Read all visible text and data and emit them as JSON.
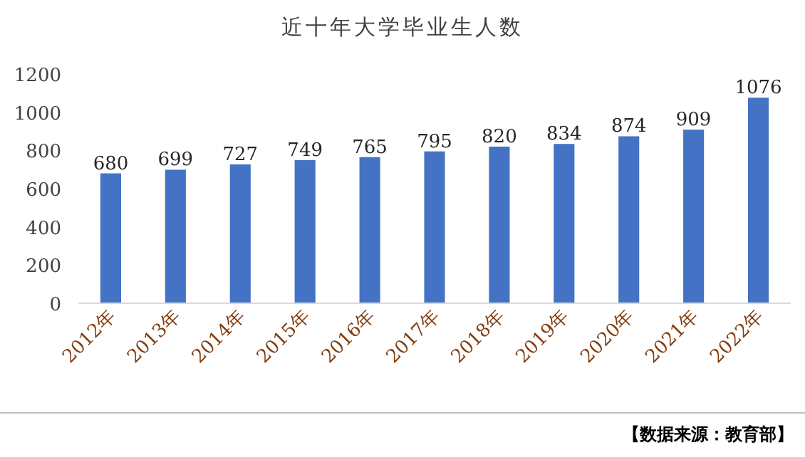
{
  "chart_data": {
    "type": "bar",
    "title": "近十年大学毕业生人数",
    "categories": [
      "2012年",
      "2013年",
      "2014年",
      "2015年",
      "2016年",
      "2017年",
      "2018年",
      "2019年",
      "2020年",
      "2021年",
      "2022年"
    ],
    "values": [
      680,
      699,
      727,
      749,
      765,
      795,
      820,
      834,
      874,
      909,
      1076
    ],
    "color": "#4472c4",
    "ylim": [
      0,
      1200
    ],
    "yticks": [
      0,
      200,
      400,
      600,
      800,
      1000,
      1200
    ],
    "data_labels": true,
    "annotations": [
      "【数据来源：教育部】"
    ]
  }
}
